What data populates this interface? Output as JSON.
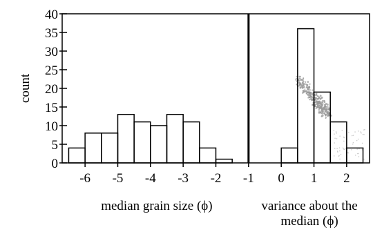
{
  "chart_data": {
    "type": "bar",
    "ylabel": "count",
    "ylim": [
      0,
      40
    ],
    "yticks": [
      "0",
      "5",
      "10",
      "15",
      "20",
      "25",
      "30",
      "35",
      "40"
    ],
    "xlim": [
      -6.7,
      2.7
    ],
    "xticks": [
      "-6",
      "-5",
      "-4",
      "-3",
      "-2",
      "-1",
      "0",
      "1",
      "2"
    ],
    "divider_x": -1,
    "panels": [
      {
        "xlabel": "median grain size (ϕ)",
        "bin_width": 0.5,
        "bins_left": [
          -6.5,
          -6,
          -5.5,
          -5,
          -4.5,
          -4,
          -3.5,
          -3,
          -2.5,
          -2
        ],
        "values": [
          4,
          8,
          8,
          13,
          11,
          10,
          13,
          11,
          4,
          1
        ]
      },
      {
        "xlabel_lines": [
          "variance about the",
          "median (ϕ)"
        ],
        "bin_width": 0.5,
        "bins_left": [
          0,
          0.5,
          1,
          1.5,
          2
        ],
        "values": [
          4,
          36,
          19,
          11,
          4
        ]
      }
    ]
  }
}
